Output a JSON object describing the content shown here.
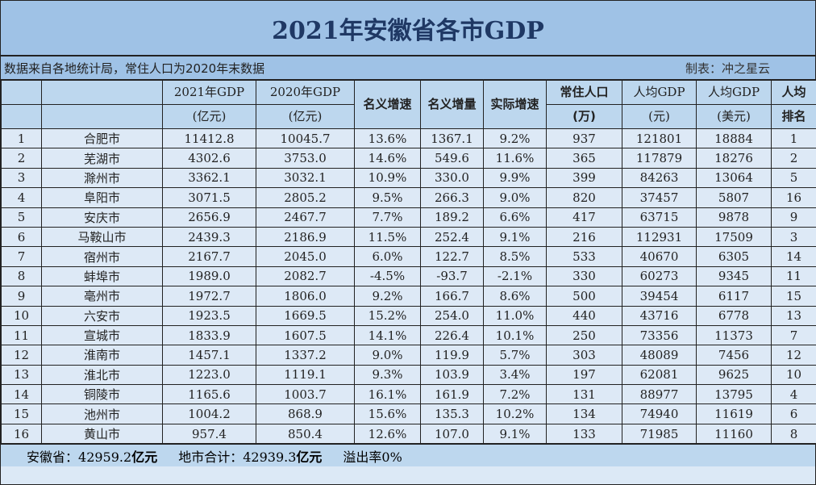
{
  "title": "2021年安徽省各市GDP",
  "subtitle_left": "数据来自各地统计局，常住人口为2020年末数据",
  "subtitle_right": "制表：冲之星云",
  "headers": [
    [
      "",
      ""
    ],
    [
      "",
      ""
    ],
    [
      "2021年GDP",
      "(亿元)"
    ],
    [
      "2020年GDP",
      "(亿元)"
    ],
    [
      "名义增速"
    ],
    [
      "名义增量"
    ],
    [
      "实际增速"
    ],
    [
      "常住人口",
      "(万)"
    ],
    [
      "人均GDP",
      "(元)"
    ],
    [
      "人均GDP",
      "(美元)"
    ],
    [
      "人均",
      "排名"
    ]
  ],
  "rows": [
    [
      "1",
      "合肥市",
      "11412.8",
      "10045.7",
      "13.6%",
      "1367.1",
      "9.2%",
      "937",
      "121801",
      "18884",
      "1"
    ],
    [
      "2",
      "芜湖市",
      "4302.6",
      "3753.0",
      "14.6%",
      "549.6",
      "11.6%",
      "365",
      "117879",
      "18276",
      "2"
    ],
    [
      "3",
      "滁州市",
      "3362.1",
      "3032.1",
      "10.9%",
      "330.0",
      "9.9%",
      "399",
      "84263",
      "13064",
      "5"
    ],
    [
      "4",
      "阜阳市",
      "3071.5",
      "2805.2",
      "9.5%",
      "266.3",
      "9.0%",
      "820",
      "37457",
      "5807",
      "16"
    ],
    [
      "5",
      "安庆市",
      "2656.9",
      "2467.7",
      "7.7%",
      "189.2",
      "6.6%",
      "417",
      "63715",
      "9878",
      "9"
    ],
    [
      "6",
      "马鞍山市",
      "2439.3",
      "2186.9",
      "11.5%",
      "252.4",
      "9.1%",
      "216",
      "112931",
      "17509",
      "3"
    ],
    [
      "7",
      "宿州市",
      "2167.7",
      "2045.0",
      "6.0%",
      "122.7",
      "8.5%",
      "533",
      "40670",
      "6305",
      "14"
    ],
    [
      "8",
      "蚌埠市",
      "1989.0",
      "2082.7",
      "-4.5%",
      "-93.7",
      "-2.1%",
      "330",
      "60273",
      "9345",
      "11"
    ],
    [
      "9",
      "亳州市",
      "1972.7",
      "1806.0",
      "9.2%",
      "166.7",
      "8.6%",
      "500",
      "39454",
      "6117",
      "15"
    ],
    [
      "10",
      "六安市",
      "1923.5",
      "1669.5",
      "15.2%",
      "254.0",
      "11.0%",
      "440",
      "43716",
      "6778",
      "13"
    ],
    [
      "11",
      "宣城市",
      "1833.9",
      "1607.5",
      "14.1%",
      "226.4",
      "10.1%",
      "250",
      "73356",
      "11373",
      "7"
    ],
    [
      "12",
      "淮南市",
      "1457.1",
      "1337.2",
      "9.0%",
      "119.9",
      "5.7%",
      "303",
      "48089",
      "7456",
      "12"
    ],
    [
      "13",
      "淮北市",
      "1223.0",
      "1119.1",
      "9.3%",
      "103.9",
      "3.4%",
      "197",
      "62081",
      "9625",
      "10"
    ],
    [
      "14",
      "铜陵市",
      "1165.6",
      "1003.7",
      "16.1%",
      "161.9",
      "7.2%",
      "131",
      "88977",
      "13795",
      "4"
    ],
    [
      "15",
      "池州市",
      "1004.2",
      "868.9",
      "15.6%",
      "135.3",
      "10.2%",
      "134",
      "74940",
      "11619",
      "6"
    ],
    [
      "16",
      "黄山市",
      "957.4",
      "850.4",
      "12.6%",
      "107.0",
      "9.1%",
      "133",
      "71985",
      "11160",
      "8"
    ]
  ],
  "footer": {
    "province_label": "安徽省：",
    "province_value": "42959.2",
    "unit1": "亿元",
    "sum_label": "地市合计：",
    "sum_value": "42939.3",
    "unit2": "亿元",
    "spill": "溢出率0%"
  }
}
